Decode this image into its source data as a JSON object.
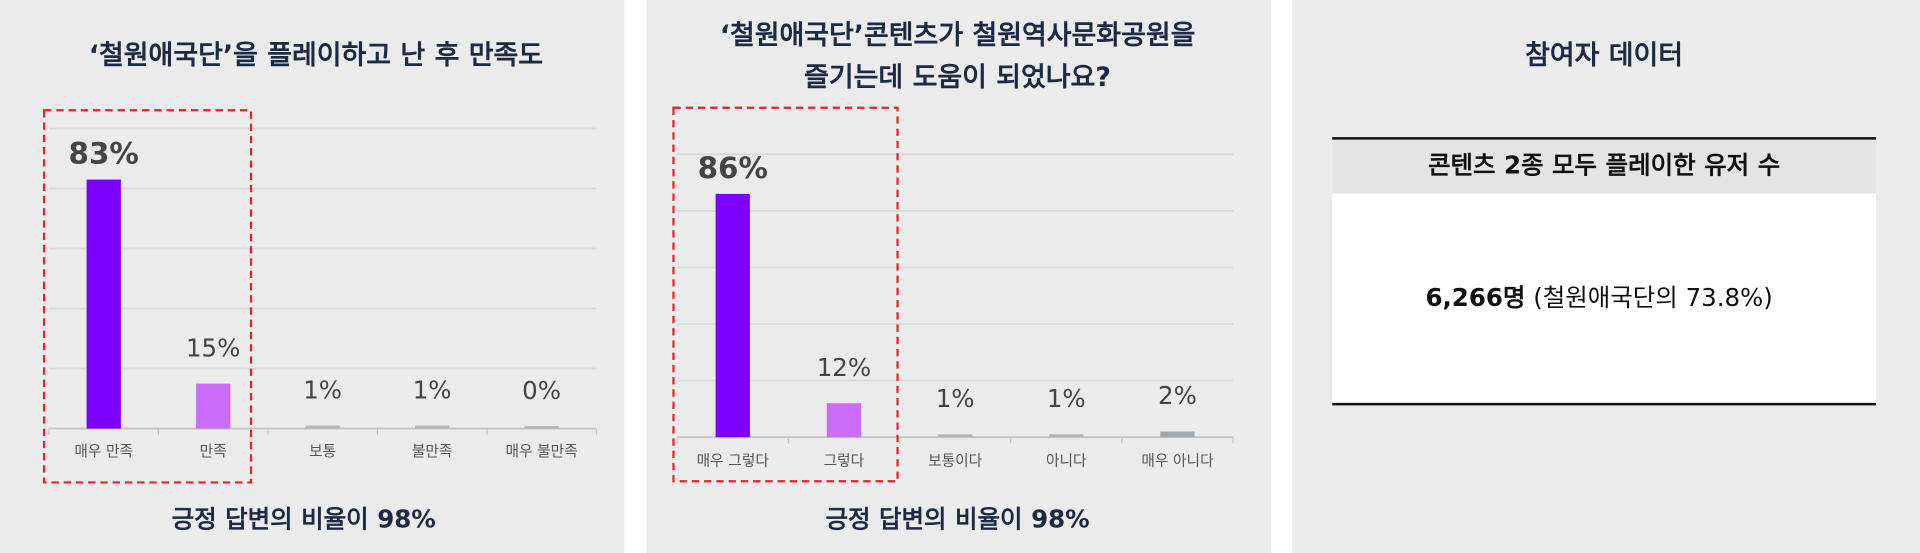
{
  "chart_data": [
    {
      "type": "bar",
      "title": [
        "‘철원애국단’을 플레이하고 난 후 만족도"
      ],
      "categories": [
        "매우 만족",
        "만족",
        "보통",
        "불만족",
        "매우 불만족"
      ],
      "values": [
        83,
        15,
        1,
        1,
        0
      ],
      "value_labels": [
        "83%",
        "15%",
        "1%",
        "1%",
        "0%"
      ],
      "colors": [
        "#7a00ff",
        "#c96cfa",
        "#b4b4b4",
        "#b4b4b4",
        "#b4b4b4"
      ],
      "ylim": [
        0,
        100
      ],
      "yticks": [
        0,
        20,
        40,
        60,
        80,
        100
      ],
      "grid": true,
      "caption": "긍정 답변의 비율이 98%"
    },
    {
      "type": "bar",
      "title": [
        "‘철원애국단’콘텐츠가 철원역사문화공원을",
        "즐기는데 도움이 되었나요?"
      ],
      "categories": [
        "매우 그렇다",
        "그렇다",
        "보통이다",
        "아니다",
        "매우 아니다"
      ],
      "values": [
        86,
        12,
        1,
        1,
        2
      ],
      "value_labels": [
        "86%",
        "12%",
        "1%",
        "1%",
        "2%"
      ],
      "colors": [
        "#7a00ff",
        "#c96cfa",
        "#b4b4b4",
        "#b4b4b4",
        "#a3a7ae"
      ],
      "ylim": [
        0,
        100
      ],
      "yticks": [
        0,
        20,
        40,
        60,
        80,
        100
      ],
      "grid": true,
      "caption": "긍정 답변의 비율이 98%"
    }
  ],
  "participant_panel": {
    "title": "참여자 데이터",
    "table": {
      "header": "콘텐츠 2종 모두 플레이한 유저 수",
      "value": "6,266명",
      "note": "(철원애국단의 73.8%)"
    }
  }
}
